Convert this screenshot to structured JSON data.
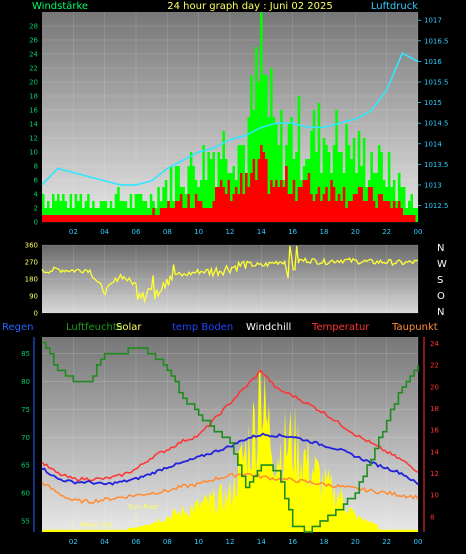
{
  "header": {
    "left_label": "Windstärke",
    "title": "24 hour graph day : Juni 02 2025",
    "right_label": "Luftdruck"
  },
  "colors": {
    "wind_gust": "#00ff00",
    "wind_avg": "#ff0000",
    "pressure": "#33e6ff",
    "direction": "#ffff33",
    "humidity": "#1e8c1e",
    "solar": "#ffff00",
    "soil_temp": "#2222dd",
    "temperature": "#ff3333",
    "dewpoint": "#ff8c33",
    "left_axis": "#00cc66",
    "right_axis": "#33ccff",
    "lower_left_axis": "#2266ff",
    "lower_right_axis": "#ff3333"
  },
  "compass": [
    "N",
    "W",
    "S",
    "O",
    "N"
  ],
  "legend": {
    "regen": "Regen",
    "humidity": "Luftfeuchte",
    "solar": "Solar",
    "soil": "temp Boden",
    "windchill": "Windchill",
    "temperature": "Temperatur",
    "dewpoint": "Taupunkt"
  },
  "annotations": {
    "sunrise": "Sun Rise",
    "moonset": "Moon Set"
  },
  "chart_data": [
    {
      "type": "line",
      "title": "24 hour graph day : Juni 02 2025",
      "xlabel": "",
      "x_ticks": [
        "02",
        "04",
        "06",
        "08",
        "10",
        "12",
        "14",
        "16",
        "18",
        "20",
        "22",
        "00"
      ],
      "left_axis_label": "Windstärke",
      "left_ticks": [
        0,
        2,
        4,
        6,
        8,
        10,
        12,
        14,
        16,
        18,
        20,
        22,
        24,
        26,
        28
      ],
      "ylim_left": [
        0,
        30
      ],
      "right_axis_label": "Luftdruck",
      "right_ticks": [
        1012.5,
        1013,
        1013.5,
        1014,
        1014.5,
        1015,
        1015.5,
        1016,
        1016.5,
        1017
      ],
      "ylim_right": [
        1012.1,
        1017.2
      ],
      "x_hours": [
        0,
        1,
        2,
        3,
        4,
        5,
        6,
        7,
        8,
        9,
        10,
        11,
        12,
        13,
        14,
        15,
        16,
        17,
        18,
        19,
        20,
        21,
        22,
        23,
        24
      ],
      "series": [
        {
          "name": "Windstärke",
          "axis": "left",
          "style": "fill",
          "values": [
            4,
            4,
            3,
            4,
            3,
            4,
            3,
            4,
            6,
            8,
            9,
            11,
            13,
            12,
            24,
            12,
            14,
            13,
            14,
            12,
            11,
            10,
            8,
            5,
            2
          ]
        },
        {
          "name": "Wind avg",
          "axis": "left",
          "style": "fill",
          "values": [
            1,
            1,
            1,
            1,
            1,
            1,
            1,
            1,
            2,
            3,
            4,
            4,
            5,
            5,
            8,
            5,
            6,
            5,
            5,
            5,
            4,
            4,
            3,
            2,
            0
          ]
        },
        {
          "name": "Luftdruck",
          "axis": "right",
          "style": "line",
          "values": [
            1013.0,
            1013.4,
            1013.3,
            1013.2,
            1013.1,
            1013.0,
            1013.0,
            1013.1,
            1013.4,
            1013.6,
            1013.8,
            1013.9,
            1014.1,
            1014.2,
            1014.4,
            1014.5,
            1014.5,
            1014.4,
            1014.4,
            1014.5,
            1014.6,
            1014.8,
            1015.3,
            1016.2,
            1016.0
          ]
        }
      ]
    },
    {
      "type": "line",
      "x_ticks": [],
      "left_ticks": [
        0,
        90,
        180,
        270,
        360
      ],
      "ylim": [
        0,
        360
      ],
      "x_hours": [
        0,
        1,
        2,
        3,
        4,
        5,
        6,
        7,
        8,
        9,
        10,
        11,
        12,
        13,
        14,
        15,
        16,
        17,
        18,
        19,
        20,
        21,
        22,
        23,
        24
      ],
      "series": [
        {
          "name": "Windrichtung",
          "values": [
            220,
            230,
            225,
            230,
            110,
            200,
            150,
            120,
            210,
            200,
            220,
            220,
            240,
            260,
            250,
            270,
            275,
            280,
            270,
            280,
            275,
            270,
            270,
            265,
            270
          ]
        }
      ]
    },
    {
      "type": "line",
      "x_ticks": [
        "02",
        "04",
        "06",
        "08",
        "10",
        "12",
        "14",
        "16",
        "18",
        "20",
        "22",
        "00"
      ],
      "left_axis_label": "Regen",
      "left_ticks": [
        55,
        60,
        65,
        70,
        75,
        80,
        85
      ],
      "ylim_left": [
        53,
        88
      ],
      "right_ticks": [
        8,
        10,
        12,
        14,
        16,
        18,
        20,
        22,
        24
      ],
      "ylim_right": [
        6.6,
        24.6
      ],
      "x_hours": [
        0,
        1,
        2,
        3,
        4,
        5,
        6,
        7,
        8,
        9,
        10,
        11,
        12,
        13,
        14,
        15,
        16,
        17,
        18,
        19,
        20,
        21,
        22,
        23,
        24
      ],
      "series": [
        {
          "name": "Luftfeuchte",
          "axis": "left",
          "values": [
            87,
            82,
            80,
            80,
            85,
            85,
            86,
            85,
            82,
            77,
            74,
            71,
            69,
            61,
            65,
            64,
            54,
            53,
            55,
            57,
            60,
            66,
            73,
            79,
            83
          ]
        },
        {
          "name": "Solar",
          "axis": "right",
          "style": "fill",
          "values": [
            7,
            7,
            7,
            7,
            7,
            7,
            7,
            7.5,
            8,
            8.5,
            9,
            9.5,
            10,
            14,
            18,
            14,
            15,
            13,
            11,
            10,
            8,
            7.5,
            7,
            7,
            7
          ]
        },
        {
          "name": "temp Boden",
          "axis": "right",
          "values": [
            12.5,
            11.5,
            11.2,
            11.2,
            11.0,
            11.2,
            11.5,
            12.0,
            12.6,
            13.0,
            13.5,
            14.0,
            14.5,
            15.2,
            15.6,
            15.5,
            15.4,
            15.0,
            14.6,
            14.2,
            13.6,
            13.0,
            12.5,
            12.0,
            11.0
          ]
        },
        {
          "name": "Temperatur",
          "axis": "right",
          "values": [
            13.0,
            12.0,
            11.5,
            11.5,
            11.5,
            11.8,
            12.4,
            13.5,
            14.2,
            15.0,
            15.5,
            17.0,
            18.5,
            20.0,
            21.5,
            19.8,
            19.2,
            18.4,
            17.6,
            16.6,
            15.6,
            14.8,
            14.0,
            13.2,
            12.2
          ]
        },
        {
          "name": "Taupunkt",
          "axis": "right",
          "values": [
            11.2,
            10.2,
            9.5,
            9.4,
            9.6,
            9.8,
            10.0,
            10.2,
            10.4,
            10.8,
            11.0,
            11.5,
            11.8,
            12.0,
            11.7,
            11.5,
            11.4,
            11.2,
            11.0,
            10.8,
            10.6,
            10.4,
            10.2,
            10.0,
            9.8
          ]
        }
      ]
    }
  ]
}
